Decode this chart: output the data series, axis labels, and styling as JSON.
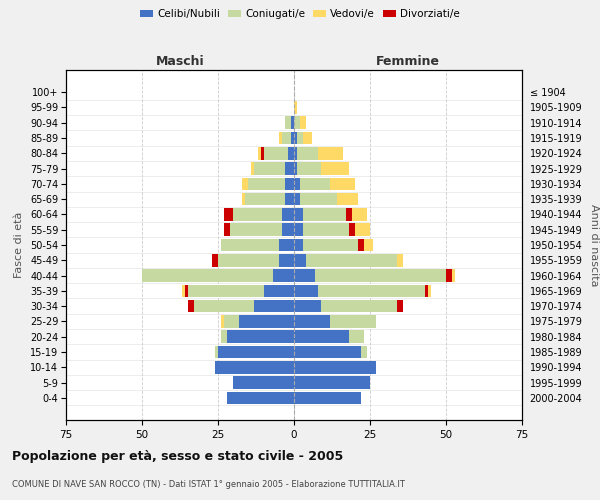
{
  "age_groups": [
    "0-4",
    "5-9",
    "10-14",
    "15-19",
    "20-24",
    "25-29",
    "30-34",
    "35-39",
    "40-44",
    "45-49",
    "50-54",
    "55-59",
    "60-64",
    "65-69",
    "70-74",
    "75-79",
    "80-84",
    "85-89",
    "90-94",
    "95-99",
    "100+"
  ],
  "birth_years": [
    "2000-2004",
    "1995-1999",
    "1990-1994",
    "1985-1989",
    "1980-1984",
    "1975-1979",
    "1970-1974",
    "1965-1969",
    "1960-1964",
    "1955-1959",
    "1950-1954",
    "1945-1949",
    "1940-1944",
    "1935-1939",
    "1930-1934",
    "1925-1929",
    "1920-1924",
    "1915-1919",
    "1910-1914",
    "1905-1909",
    "≤ 1904"
  ],
  "maschi": {
    "celibi": [
      22,
      20,
      26,
      25,
      22,
      18,
      13,
      10,
      7,
      5,
      5,
      4,
      4,
      3,
      3,
      3,
      2,
      1,
      1,
      0,
      0
    ],
    "coniugati": [
      0,
      0,
      0,
      1,
      2,
      5,
      20,
      25,
      43,
      20,
      19,
      17,
      16,
      13,
      12,
      10,
      8,
      3,
      2,
      0,
      0
    ],
    "vedovi": [
      0,
      0,
      0,
      0,
      0,
      1,
      0,
      1,
      0,
      0,
      0,
      0,
      0,
      1,
      2,
      1,
      1,
      1,
      0,
      0,
      0
    ],
    "divorziati": [
      0,
      0,
      0,
      0,
      0,
      0,
      2,
      1,
      0,
      2,
      0,
      2,
      3,
      0,
      0,
      0,
      1,
      0,
      0,
      0,
      0
    ]
  },
  "femmine": {
    "nubili": [
      22,
      25,
      27,
      22,
      18,
      12,
      9,
      8,
      7,
      4,
      3,
      3,
      3,
      2,
      2,
      1,
      1,
      1,
      0,
      0,
      0
    ],
    "coniugate": [
      0,
      0,
      0,
      2,
      5,
      15,
      25,
      35,
      43,
      30,
      18,
      15,
      14,
      12,
      10,
      8,
      7,
      2,
      2,
      0,
      0
    ],
    "vedove": [
      0,
      0,
      0,
      0,
      0,
      0,
      0,
      1,
      1,
      2,
      3,
      5,
      5,
      7,
      8,
      9,
      8,
      3,
      2,
      1,
      0
    ],
    "divorziate": [
      0,
      0,
      0,
      0,
      0,
      0,
      2,
      1,
      2,
      0,
      2,
      2,
      2,
      0,
      0,
      0,
      0,
      0,
      0,
      0,
      0
    ]
  },
  "colors": {
    "celibi_nubili": "#4472c4",
    "coniugati": "#c5d9a0",
    "vedovi": "#ffd966",
    "divorziati": "#cc0000"
  },
  "title": "Popolazione per età, sesso e stato civile - 2005",
  "subtitle": "COMUNE DI NAVE SAN ROCCO (TN) - Dati ISTAT 1° gennaio 2005 - Elaborazione TUTTITALIA.IT",
  "xlabel_left": "Maschi",
  "xlabel_right": "Femmine",
  "ylabel_left": "Fasce di età",
  "ylabel_right": "Anni di nascita",
  "xlim": 75,
  "legend_labels": [
    "Celibi/Nubili",
    "Coniugati/e",
    "Vedovi/e",
    "Divorziati/e"
  ],
  "bg_color": "#f0f0f0",
  "plot_bg_color": "#ffffff",
  "grid_color": "#cccccc"
}
